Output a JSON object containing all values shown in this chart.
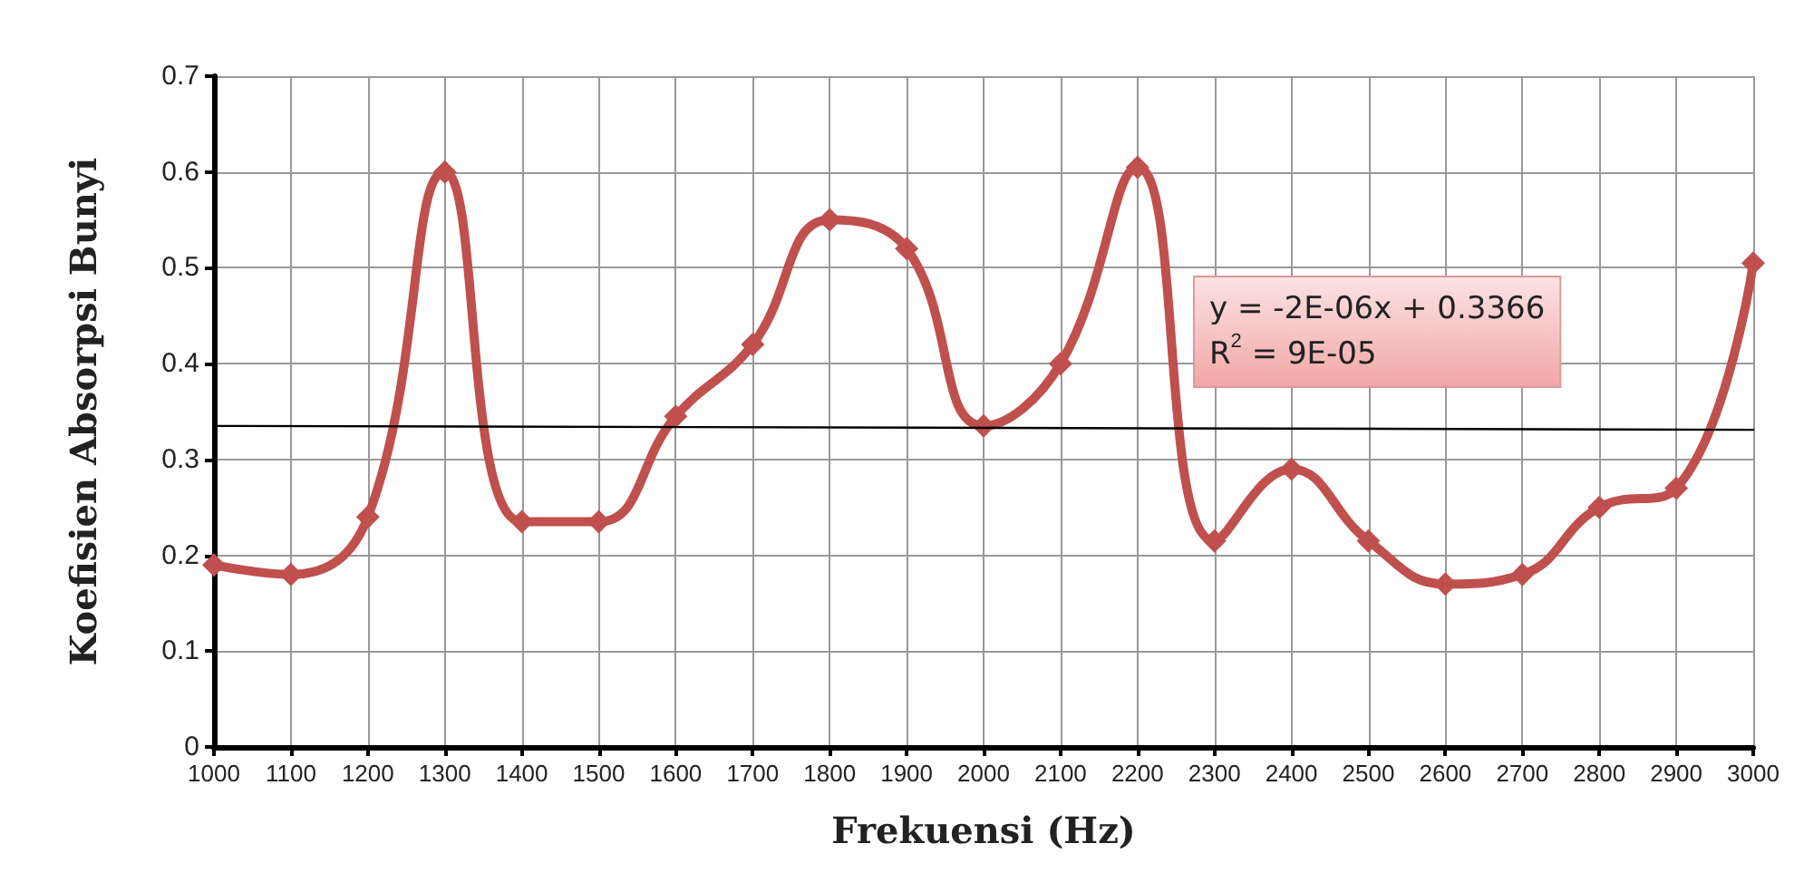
{
  "chart_data": {
    "type": "line",
    "xlabel": "Frekuensi (Hz)",
    "ylabel": "Koefisien Absorpsi Bunyi",
    "x": [
      1000,
      1100,
      1200,
      1300,
      1400,
      1500,
      1600,
      1700,
      1800,
      1900,
      2000,
      2100,
      2200,
      2300,
      2400,
      2500,
      2600,
      2700,
      2800,
      2900,
      3000
    ],
    "xlim": [
      1000,
      3000
    ],
    "xticks": [
      1000,
      1100,
      1200,
      1300,
      1400,
      1500,
      1600,
      1700,
      1800,
      1900,
      2000,
      2100,
      2200,
      2300,
      2400,
      2500,
      2600,
      2700,
      2800,
      2900,
      3000
    ],
    "series": [
      {
        "color": "#c0504d",
        "values": [
          0.19,
          0.18,
          0.24,
          0.6,
          0.235,
          0.235,
          0.345,
          0.42,
          0.55,
          0.52,
          0.335,
          0.4,
          0.605,
          0.215,
          0.29,
          0.215,
          0.17,
          0.18,
          0.25,
          0.27,
          0.505
        ],
        "marker": "diamond"
      },
      {
        "type": "line",
        "color": "#000000",
        "x": [
          1000,
          3000
        ],
        "values": [
          0.335,
          0.331
        ],
        "marker": "none"
      }
    ],
    "annotations": [
      "y = -2E-06x + 0.3366",
      "R$^{2}$ = 9E-05"
    ],
    "ylim": [
      0,
      0.7
    ],
    "yticks": [
      0,
      0.1,
      0.2,
      0.3,
      0.4,
      0.5,
      0.6,
      0.7
    ],
    "grid": true
  }
}
